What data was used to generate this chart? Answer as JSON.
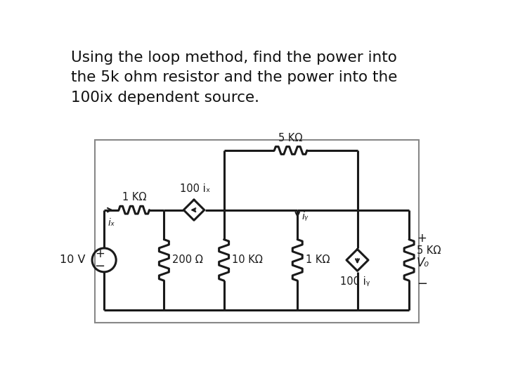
{
  "title_text": "Using the loop method, find the power into\nthe 5k ohm resistor and the power into the\n100ix dependent source.",
  "bg_color": "#ffffff",
  "line_color": "#1a1a1a",
  "title_fontsize": 15.5,
  "components": {
    "res_1k_left": "1 KΩ",
    "cdcs_100ix": "100 iₓ",
    "res_200": "200 Ω",
    "res_10k": "10 KΩ",
    "res_1k_mid": "1 KΩ",
    "cdcs_100iy": "100 iᵧ",
    "res_5k_top": "5 KΩ",
    "res_5k_right": "5 KΩ",
    "vs_label": "10 V",
    "label_ix": "iₓ",
    "label_iy": "iᵧ",
    "label_Vo": "V₀",
    "plus_Vo": "+",
    "minus_Vo": "−"
  }
}
